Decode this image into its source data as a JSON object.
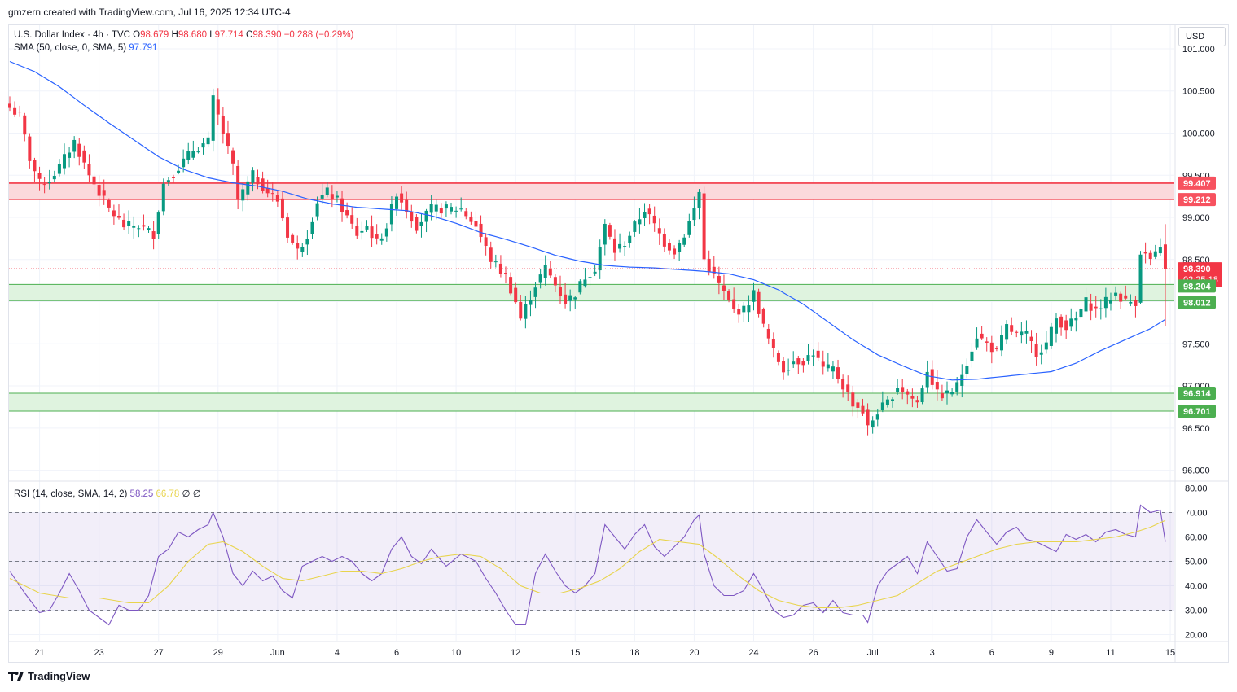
{
  "header": {
    "creator_text": "gmzern created with TradingView.com, Jul 16, 2025 12:34 UTC-4"
  },
  "legend": {
    "symbol": "U.S. Dollar Index · 4h · TVC",
    "open_label": "O",
    "open": "98.679",
    "high_label": "H",
    "high": "98.680",
    "low_label": "L",
    "low": "97.714",
    "close_label": "C",
    "close": "98.390",
    "change": "−0.288 (−0.29%)",
    "sma_label": "SMA (50, close, 0, SMA, 5)",
    "sma_value": "97.791",
    "rsi_label": "RSI (14, close, SMA, 14, 2)",
    "rsi_value": "58.25",
    "rsi_ma_value": "66.78",
    "rsi_extra": "∅ ∅"
  },
  "currency": "USD",
  "footer": {
    "brand": "TradingView"
  },
  "colors": {
    "up": "#089981",
    "down": "#f23645",
    "sma": "#2962ff",
    "rsi": "#7e57c2",
    "rsi_ma": "#e8d44d",
    "resistance_fill": "#fbd9dc",
    "support_fill": "#dff3df",
    "resistance_line": "#f23645",
    "support_line": "#4caf50"
  },
  "chart_data": {
    "type": "candlestick",
    "price_axis": {
      "min": 95.88,
      "max": 101.28,
      "ticks": [
        "96.000",
        "96.500",
        "97.000",
        "97.500",
        "98.000",
        "98.500",
        "99.000",
        "99.500",
        "100.000",
        "100.500",
        "101.000"
      ]
    },
    "x_ticks": [
      {
        "label": "21",
        "bar": 6
      },
      {
        "label": "23",
        "bar": 18
      },
      {
        "label": "27",
        "bar": 30
      },
      {
        "label": "29",
        "bar": 42
      },
      {
        "label": "Jun",
        "bar": 54
      },
      {
        "label": "4",
        "bar": 66
      },
      {
        "label": "6",
        "bar": 78
      },
      {
        "label": "10",
        "bar": 90
      },
      {
        "label": "12",
        "bar": 102
      },
      {
        "label": "15",
        "bar": 114
      },
      {
        "label": "18",
        "bar": 126
      },
      {
        "label": "20",
        "bar": 138
      },
      {
        "label": "24",
        "bar": 150
      },
      {
        "label": "26",
        "bar": 162
      },
      {
        "label": "Jul",
        "bar": 174
      },
      {
        "label": "3",
        "bar": 186
      },
      {
        "label": "6",
        "bar": 198
      },
      {
        "label": "9",
        "bar": 210
      },
      {
        "label": "11",
        "bar": 222
      },
      {
        "label": "15",
        "bar": 234
      }
    ],
    "zones": [
      {
        "type": "resistance",
        "top": 99.407,
        "bottom": 99.212
      },
      {
        "type": "support",
        "top": 98.204,
        "bottom": 98.012
      },
      {
        "type": "support",
        "top": 96.914,
        "bottom": 96.701
      }
    ],
    "price_tags": [
      {
        "value": "99.407",
        "price": 99.407,
        "kind": "resistance"
      },
      {
        "value": "99.212",
        "price": 99.212,
        "kind": "resistance"
      },
      {
        "value": "98.390",
        "price": 98.39,
        "kind": "last",
        "countdown": "02:25:18"
      },
      {
        "value": "98.204",
        "price": 98.204,
        "kind": "support"
      },
      {
        "value": "98.012",
        "price": 98.012,
        "kind": "support"
      },
      {
        "value": "96.914",
        "price": 96.914,
        "kind": "support"
      },
      {
        "value": "96.701",
        "price": 96.701,
        "kind": "support"
      }
    ],
    "last_price": 98.39,
    "close_anchors": [
      [
        0,
        100.3
      ],
      [
        2,
        100.2
      ],
      [
        4,
        99.7
      ],
      [
        6,
        99.4
      ],
      [
        8,
        99.45
      ],
      [
        10,
        99.6
      ],
      [
        13,
        99.9
      ],
      [
        16,
        99.5
      ],
      [
        20,
        99.1
      ],
      [
        23,
        98.9
      ],
      [
        26,
        98.9
      ],
      [
        29,
        98.8
      ],
      [
        31,
        99.4
      ],
      [
        34,
        99.6
      ],
      [
        37,
        99.8
      ],
      [
        40,
        99.9
      ],
      [
        41,
        100.4
      ],
      [
        43,
        100.0
      ],
      [
        45,
        99.6
      ],
      [
        46,
        99.2
      ],
      [
        49,
        99.5
      ],
      [
        52,
        99.3
      ],
      [
        54,
        99.2
      ],
      [
        56,
        98.8
      ],
      [
        58,
        98.6
      ],
      [
        60,
        98.8
      ],
      [
        62,
        99.2
      ],
      [
        64,
        99.3
      ],
      [
        66,
        99.2
      ],
      [
        68,
        99.0
      ],
      [
        70,
        98.8
      ],
      [
        72,
        98.9
      ],
      [
        74,
        98.7
      ],
      [
        76,
        98.9
      ],
      [
        78,
        99.3
      ],
      [
        80,
        99.1
      ],
      [
        82,
        98.9
      ],
      [
        85,
        99.1
      ],
      [
        88,
        99.1
      ],
      [
        91,
        99.1
      ],
      [
        94,
        98.9
      ],
      [
        97,
        98.5
      ],
      [
        100,
        98.3
      ],
      [
        102,
        98.0
      ],
      [
        103,
        97.8
      ],
      [
        106,
        98.2
      ],
      [
        108,
        98.4
      ],
      [
        110,
        98.2
      ],
      [
        112,
        98.0
      ],
      [
        114,
        98.1
      ],
      [
        116,
        98.3
      ],
      [
        118,
        98.4
      ],
      [
        120,
        98.9
      ],
      [
        122,
        98.6
      ],
      [
        124,
        98.7
      ],
      [
        126,
        98.9
      ],
      [
        128,
        99.1
      ],
      [
        130,
        98.9
      ],
      [
        132,
        98.7
      ],
      [
        134,
        98.6
      ],
      [
        136,
        98.8
      ],
      [
        138,
        99.1
      ],
      [
        139,
        99.3
      ],
      [
        140,
        98.5
      ],
      [
        142,
        98.3
      ],
      [
        144,
        98.1
      ],
      [
        146,
        97.9
      ],
      [
        148,
        97.9
      ],
      [
        150,
        98.1
      ],
      [
        152,
        97.7
      ],
      [
        154,
        97.4
      ],
      [
        156,
        97.2
      ],
      [
        158,
        97.3
      ],
      [
        160,
        97.3
      ],
      [
        162,
        97.4
      ],
      [
        164,
        97.2
      ],
      [
        166,
        97.2
      ],
      [
        168,
        97.0
      ],
      [
        170,
        96.8
      ],
      [
        172,
        96.7
      ],
      [
        173,
        96.5
      ],
      [
        175,
        96.7
      ],
      [
        177,
        96.8
      ],
      [
        179,
        97.0
      ],
      [
        181,
        96.9
      ],
      [
        183,
        96.8
      ],
      [
        185,
        97.2
      ],
      [
        187,
        96.9
      ],
      [
        189,
        96.9
      ],
      [
        191,
        97.0
      ],
      [
        193,
        97.3
      ],
      [
        195,
        97.6
      ],
      [
        197,
        97.5
      ],
      [
        199,
        97.4
      ],
      [
        201,
        97.7
      ],
      [
        203,
        97.6
      ],
      [
        205,
        97.6
      ],
      [
        207,
        97.4
      ],
      [
        209,
        97.5
      ],
      [
        211,
        97.8
      ],
      [
        213,
        97.7
      ],
      [
        215,
        97.8
      ],
      [
        217,
        98.0
      ],
      [
        219,
        97.9
      ],
      [
        221,
        98.0
      ],
      [
        223,
        98.1
      ],
      [
        225,
        98.0
      ],
      [
        227,
        98.0
      ],
      [
        228,
        98.6
      ],
      [
        230,
        98.5
      ],
      [
        232,
        98.6
      ],
      [
        233,
        98.39
      ]
    ],
    "sma50_anchors": [
      [
        0,
        100.85
      ],
      [
        5,
        100.73
      ],
      [
        10,
        100.55
      ],
      [
        15,
        100.33
      ],
      [
        20,
        100.12
      ],
      [
        25,
        99.92
      ],
      [
        30,
        99.72
      ],
      [
        35,
        99.57
      ],
      [
        40,
        99.47
      ],
      [
        45,
        99.41
      ],
      [
        50,
        99.37
      ],
      [
        55,
        99.31
      ],
      [
        60,
        99.22
      ],
      [
        65,
        99.16
      ],
      [
        70,
        99.12
      ],
      [
        75,
        99.1
      ],
      [
        80,
        99.08
      ],
      [
        85,
        99.02
      ],
      [
        90,
        98.93
      ],
      [
        95,
        98.82
      ],
      [
        100,
        98.74
      ],
      [
        105,
        98.65
      ],
      [
        110,
        98.55
      ],
      [
        115,
        98.48
      ],
      [
        120,
        98.43
      ],
      [
        125,
        98.41
      ],
      [
        130,
        98.4
      ],
      [
        135,
        98.38
      ],
      [
        140,
        98.36
      ],
      [
        145,
        98.33
      ],
      [
        150,
        98.26
      ],
      [
        155,
        98.14
      ],
      [
        160,
        97.97
      ],
      [
        165,
        97.76
      ],
      [
        170,
        97.55
      ],
      [
        175,
        97.37
      ],
      [
        180,
        97.24
      ],
      [
        185,
        97.12
      ],
      [
        190,
        97.07
      ],
      [
        195,
        97.08
      ],
      [
        200,
        97.11
      ],
      [
        205,
        97.14
      ],
      [
        210,
        97.17
      ],
      [
        215,
        97.27
      ],
      [
        220,
        97.42
      ],
      [
        225,
        97.55
      ],
      [
        230,
        97.68
      ],
      [
        233,
        97.79
      ]
    ],
    "rsi_axis": {
      "min": 17.5,
      "max": 82.5,
      "ticks": [
        "20.00",
        "30.00",
        "40.00",
        "50.00",
        "60.00",
        "70.00",
        "80.00"
      ],
      "upper_band": 70,
      "middle": 50,
      "lower_band": 30
    },
    "rsi_anchors": [
      [
        0,
        46
      ],
      [
        3,
        37
      ],
      [
        6,
        29
      ],
      [
        8,
        30
      ],
      [
        10,
        37
      ],
      [
        12,
        45
      ],
      [
        14,
        38
      ],
      [
        16,
        30
      ],
      [
        18,
        27
      ],
      [
        20,
        24
      ],
      [
        22,
        32
      ],
      [
        24,
        30
      ],
      [
        26,
        30
      ],
      [
        28,
        36
      ],
      [
        30,
        52
      ],
      [
        32,
        55
      ],
      [
        34,
        62
      ],
      [
        36,
        60
      ],
      [
        38,
        63
      ],
      [
        40,
        65
      ],
      [
        41,
        70
      ],
      [
        43,
        60
      ],
      [
        45,
        45
      ],
      [
        47,
        40
      ],
      [
        49,
        46
      ],
      [
        51,
        42
      ],
      [
        53,
        44
      ],
      [
        55,
        38
      ],
      [
        57,
        35
      ],
      [
        59,
        48
      ],
      [
        61,
        50
      ],
      [
        63,
        52
      ],
      [
        65,
        50
      ],
      [
        67,
        52
      ],
      [
        69,
        50
      ],
      [
        71,
        45
      ],
      [
        73,
        42
      ],
      [
        75,
        45
      ],
      [
        77,
        55
      ],
      [
        79,
        60
      ],
      [
        81,
        52
      ],
      [
        83,
        49
      ],
      [
        85,
        55
      ],
      [
        88,
        48
      ],
      [
        91,
        53
      ],
      [
        94,
        50
      ],
      [
        96,
        43
      ],
      [
        98,
        37
      ],
      [
        100,
        30
      ],
      [
        102,
        24
      ],
      [
        104,
        24
      ],
      [
        106,
        45
      ],
      [
        108,
        53
      ],
      [
        110,
        46
      ],
      [
        112,
        40
      ],
      [
        114,
        37
      ],
      [
        116,
        40
      ],
      [
        118,
        45
      ],
      [
        120,
        65
      ],
      [
        122,
        60
      ],
      [
        124,
        55
      ],
      [
        126,
        61
      ],
      [
        128,
        65
      ],
      [
        130,
        56
      ],
      [
        132,
        52
      ],
      [
        134,
        56
      ],
      [
        136,
        60
      ],
      [
        138,
        67
      ],
      [
        139,
        69
      ],
      [
        140,
        53
      ],
      [
        142,
        40
      ],
      [
        144,
        36
      ],
      [
        146,
        36
      ],
      [
        148,
        38
      ],
      [
        150,
        45
      ],
      [
        152,
        38
      ],
      [
        154,
        30
      ],
      [
        156,
        27
      ],
      [
        158,
        28
      ],
      [
        160,
        32
      ],
      [
        162,
        33
      ],
      [
        164,
        29
      ],
      [
        166,
        34
      ],
      [
        168,
        29
      ],
      [
        170,
        28
      ],
      [
        172,
        28
      ],
      [
        173,
        25
      ],
      [
        175,
        40
      ],
      [
        177,
        46
      ],
      [
        179,
        49
      ],
      [
        181,
        52
      ],
      [
        183,
        45
      ],
      [
        185,
        58
      ],
      [
        187,
        52
      ],
      [
        189,
        46
      ],
      [
        191,
        47
      ],
      [
        193,
        60
      ],
      [
        195,
        67
      ],
      [
        197,
        62
      ],
      [
        199,
        57
      ],
      [
        201,
        62
      ],
      [
        203,
        64
      ],
      [
        205,
        59
      ],
      [
        207,
        58
      ],
      [
        209,
        56
      ],
      [
        211,
        54
      ],
      [
        213,
        61
      ],
      [
        215,
        59
      ],
      [
        217,
        61
      ],
      [
        219,
        58
      ],
      [
        221,
        62
      ],
      [
        223,
        63
      ],
      [
        225,
        61
      ],
      [
        227,
        60
      ],
      [
        228,
        73
      ],
      [
        230,
        70
      ],
      [
        232,
        71
      ],
      [
        233,
        58
      ]
    ],
    "rsi_ma_anchors": [
      [
        0,
        43
      ],
      [
        6,
        37
      ],
      [
        12,
        35
      ],
      [
        18,
        35
      ],
      [
        24,
        33
      ],
      [
        28,
        33
      ],
      [
        32,
        40
      ],
      [
        36,
        50
      ],
      [
        40,
        57
      ],
      [
        43,
        58
      ],
      [
        47,
        54
      ],
      [
        51,
        48
      ],
      [
        55,
        43
      ],
      [
        59,
        42
      ],
      [
        63,
        44
      ],
      [
        67,
        46
      ],
      [
        71,
        46
      ],
      [
        75,
        45
      ],
      [
        79,
        47
      ],
      [
        83,
        50
      ],
      [
        87,
        52
      ],
      [
        91,
        53
      ],
      [
        95,
        52
      ],
      [
        99,
        47
      ],
      [
        103,
        40
      ],
      [
        107,
        37
      ],
      [
        111,
        37
      ],
      [
        115,
        39
      ],
      [
        119,
        42
      ],
      [
        123,
        47
      ],
      [
        127,
        54
      ],
      [
        131,
        59
      ],
      [
        135,
        58
      ],
      [
        139,
        57
      ],
      [
        143,
        51
      ],
      [
        147,
        44
      ],
      [
        151,
        38
      ],
      [
        155,
        34
      ],
      [
        159,
        32
      ],
      [
        163,
        31
      ],
      [
        167,
        31
      ],
      [
        171,
        32
      ],
      [
        175,
        34
      ],
      [
        179,
        36
      ],
      [
        183,
        41
      ],
      [
        187,
        46
      ],
      [
        191,
        49
      ],
      [
        195,
        52
      ],
      [
        199,
        55
      ],
      [
        203,
        57
      ],
      [
        207,
        58
      ],
      [
        211,
        58
      ],
      [
        215,
        58
      ],
      [
        219,
        59
      ],
      [
        223,
        60
      ],
      [
        227,
        62
      ],
      [
        230,
        64
      ],
      [
        233,
        66.78
      ]
    ]
  }
}
